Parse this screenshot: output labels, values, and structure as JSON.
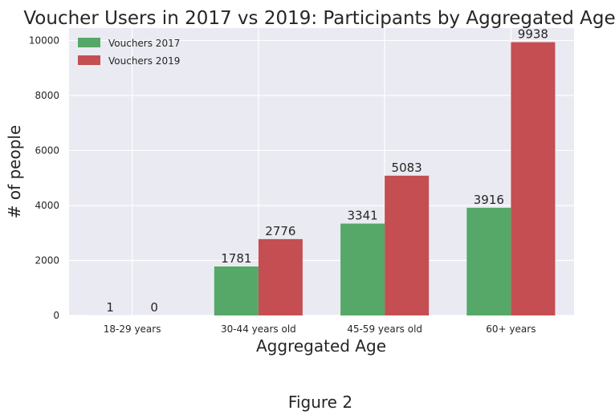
{
  "figure": {
    "caption": "Figure 2"
  },
  "chart_data": {
    "type": "bar",
    "title": "Voucher Users in 2017 vs 2019: Participants by Aggregated Age",
    "xlabel": "Aggregated Age",
    "ylabel": "# of people",
    "categories": [
      "18-29 years",
      "30-44 years old",
      "45-59 years old",
      "60+ years"
    ],
    "series": [
      {
        "name": "Vouchers 2017",
        "color": "#55a868",
        "values": [
          1,
          1781,
          3341,
          3916
        ]
      },
      {
        "name": "Vouchers 2019",
        "color": "#c44e52",
        "values": [
          0,
          2776,
          5083,
          9938
        ]
      }
    ],
    "ylim": [
      0,
      10450
    ],
    "yticks": [
      0,
      2000,
      4000,
      6000,
      8000,
      10000
    ],
    "grid": true,
    "legend_position": "top-left",
    "background_color": "#eaeaf2",
    "grid_color": "#ffffff"
  }
}
